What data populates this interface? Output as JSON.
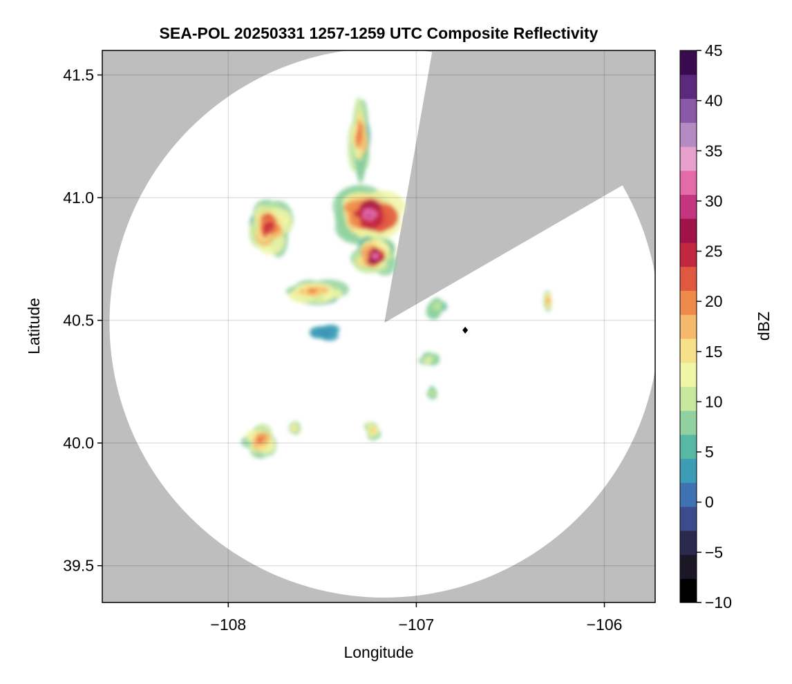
{
  "chart_data": {
    "type": "heatmap",
    "title": "SEA-POL 20250331 1257-1259 UTC Composite Reflectivity",
    "xlabel": "Longitude",
    "ylabel": "Latitude",
    "xlim": [
      -108.67,
      -105.73
    ],
    "ylim": [
      39.35,
      41.6
    ],
    "x_ticks": [
      -108,
      -107,
      -106
    ],
    "x_tick_labels": [
      "−108",
      "−107",
      "−106"
    ],
    "y_ticks": [
      39.5,
      40.0,
      40.5,
      41.0,
      41.5
    ],
    "y_tick_labels": [
      "39.5",
      "40.0",
      "40.5",
      "41.0",
      "41.5"
    ],
    "grid": true,
    "background_color": "#bebebe",
    "radar": {
      "center_lon": -107.17,
      "center_lat": 40.49,
      "range_deg_lat": 1.12,
      "blocked_sector_bearings_deg": [
        10,
        60
      ]
    },
    "colorbar": {
      "label": "dBZ",
      "range": [
        -10,
        45
      ],
      "ticks": [
        -10,
        -5,
        0,
        5,
        10,
        15,
        20,
        25,
        30,
        35,
        40,
        45
      ],
      "tick_labels": [
        "−10",
        "−5",
        "0",
        "5",
        "10",
        "15",
        "20",
        "25",
        "30",
        "35",
        "40",
        "45"
      ],
      "colors": [
        "#000000",
        "#1c1726",
        "#2b2a4e",
        "#3b4b8b",
        "#3f72b3",
        "#3d9db7",
        "#57b9a3",
        "#8fd19f",
        "#c7e89d",
        "#f0f6a6",
        "#f7e08a",
        "#f5b96b",
        "#ef8a4b",
        "#e0583f",
        "#c3273f",
        "#a0124a",
        "#c3357f",
        "#e26ba8",
        "#e8a0cd",
        "#b58bc4",
        "#8a5aa7",
        "#5c2a7d",
        "#3a0a4e"
      ]
    },
    "echo_regions": [
      {
        "name": "north-central main cell",
        "lon": -107.25,
        "lat": 40.93,
        "peak_dbz": 32
      },
      {
        "name": "south main cell",
        "lon": -107.22,
        "lat": 40.76,
        "peak_dbz": 32
      },
      {
        "name": "northwest cluster",
        "lon": -107.78,
        "lat": 40.88,
        "peak_dbz": 25
      },
      {
        "name": "northern band",
        "lon": -107.3,
        "lat": 41.25,
        "peak_dbz": 22
      },
      {
        "name": "west band",
        "lon": -107.55,
        "lat": 40.62,
        "peak_dbz": 20
      },
      {
        "name": "low-reflectivity area",
        "lon": -107.48,
        "lat": 40.45,
        "peak_dbz": 2
      },
      {
        "name": "east of radar",
        "lon": -106.9,
        "lat": 40.55,
        "peak_dbz": 10
      },
      {
        "name": "far east",
        "lon": -106.3,
        "lat": 40.58,
        "peak_dbz": 20
      },
      {
        "name": "southeast",
        "lon": -106.93,
        "lat": 40.34,
        "peak_dbz": 12
      },
      {
        "name": "southeast small",
        "lon": -106.92,
        "lat": 40.2,
        "peak_dbz": 10
      },
      {
        "name": "southwest",
        "lon": -107.83,
        "lat": 40.01,
        "peak_dbz": 22
      },
      {
        "name": "southwest small",
        "lon": -107.65,
        "lat": 40.06,
        "peak_dbz": 15
      },
      {
        "name": "south center",
        "lon": -107.23,
        "lat": 40.05,
        "peak_dbz": 18
      }
    ],
    "marker": {
      "lon": -106.74,
      "lat": 40.46
    }
  }
}
